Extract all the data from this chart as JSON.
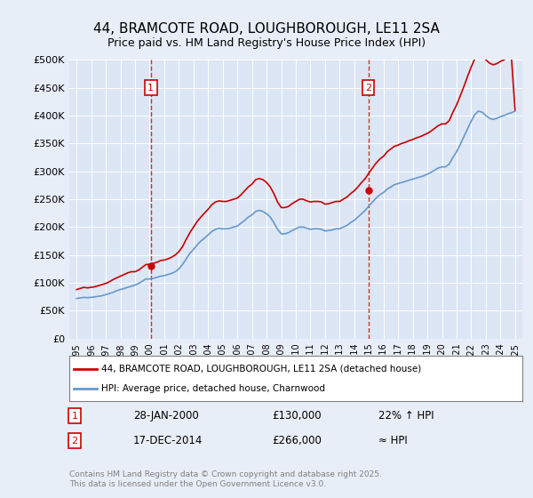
{
  "title_line1": "44, BRAMCOTE ROAD, LOUGHBOROUGH, LE11 2SA",
  "title_line2": "Price paid vs. HM Land Registry's House Price Index (HPI)",
  "background_color": "#e8eef7",
  "plot_bg_color": "#dce6f5",
  "ylim": [
    0,
    500000
  ],
  "yticks": [
    0,
    50000,
    100000,
    150000,
    200000,
    250000,
    300000,
    350000,
    400000,
    450000,
    500000
  ],
  "xlim_start": 1994.5,
  "xlim_end": 2025.5,
  "sale1_x": 2000.08,
  "sale1_y": 130000,
  "sale2_x": 2014.96,
  "sale2_y": 266000,
  "legend_label_red": "44, BRAMCOTE ROAD, LOUGHBOROUGH, LE11 2SA (detached house)",
  "legend_label_blue": "HPI: Average price, detached house, Charnwood",
  "annotation1_label": "1",
  "annotation1_date": "28-JAN-2000",
  "annotation1_price": "£130,000",
  "annotation1_hpi": "22% ↑ HPI",
  "annotation2_label": "2",
  "annotation2_date": "17-DEC-2014",
  "annotation2_price": "£266,000",
  "annotation2_hpi": "≈ HPI",
  "footer": "Contains HM Land Registry data © Crown copyright and database right 2025.\nThis data is licensed under the Open Government Licence v3.0.",
  "red_color": "#cc0000",
  "blue_color": "#6699cc",
  "hpi_data": {
    "dates": [
      1995.0,
      1995.25,
      1995.5,
      1995.75,
      1996.0,
      1996.25,
      1996.5,
      1996.75,
      1997.0,
      1997.25,
      1997.5,
      1997.75,
      1998.0,
      1998.25,
      1998.5,
      1998.75,
      1999.0,
      1999.25,
      1999.5,
      1999.75,
      2000.0,
      2000.25,
      2000.5,
      2000.75,
      2001.0,
      2001.25,
      2001.5,
      2001.75,
      2002.0,
      2002.25,
      2002.5,
      2002.75,
      2003.0,
      2003.25,
      2003.5,
      2003.75,
      2004.0,
      2004.25,
      2004.5,
      2004.75,
      2005.0,
      2005.25,
      2005.5,
      2005.75,
      2006.0,
      2006.25,
      2006.5,
      2006.75,
      2007.0,
      2007.25,
      2007.5,
      2007.75,
      2008.0,
      2008.25,
      2008.5,
      2008.75,
      2009.0,
      2009.25,
      2009.5,
      2009.75,
      2010.0,
      2010.25,
      2010.5,
      2010.75,
      2011.0,
      2011.25,
      2011.5,
      2011.75,
      2012.0,
      2012.25,
      2012.5,
      2012.75,
      2013.0,
      2013.25,
      2013.5,
      2013.75,
      2014.0,
      2014.25,
      2014.5,
      2014.75,
      2015.0,
      2015.25,
      2015.5,
      2015.75,
      2016.0,
      2016.25,
      2016.5,
      2016.75,
      2017.0,
      2017.25,
      2017.5,
      2017.75,
      2018.0,
      2018.25,
      2018.5,
      2018.75,
      2019.0,
      2019.25,
      2019.5,
      2019.75,
      2020.0,
      2020.25,
      2020.5,
      2020.75,
      2021.0,
      2021.25,
      2021.5,
      2021.75,
      2022.0,
      2022.25,
      2022.5,
      2022.75,
      2023.0,
      2023.25,
      2023.5,
      2023.75,
      2024.0,
      2024.25,
      2024.5,
      2024.75,
      2025.0
    ],
    "values": [
      72000,
      73000,
      74000,
      73500,
      74000,
      75000,
      76000,
      77000,
      79000,
      81000,
      83000,
      86000,
      88000,
      90000,
      92000,
      94000,
      96000,
      99000,
      103000,
      107000,
      107000,
      108000,
      110000,
      112000,
      113000,
      115000,
      117000,
      120000,
      125000,
      133000,
      143000,
      153000,
      160000,
      168000,
      175000,
      180000,
      186000,
      192000,
      196000,
      198000,
      197000,
      197000,
      198000,
      200000,
      202000,
      207000,
      212000,
      218000,
      222000,
      228000,
      230000,
      228000,
      224000,
      218000,
      208000,
      196000,
      188000,
      188000,
      190000,
      194000,
      197000,
      200000,
      200000,
      198000,
      196000,
      197000,
      197000,
      196000,
      193000,
      194000,
      195000,
      197000,
      197000,
      200000,
      203000,
      208000,
      212000,
      218000,
      224000,
      230000,
      238000,
      245000,
      252000,
      258000,
      262000,
      268000,
      272000,
      276000,
      278000,
      280000,
      282000,
      284000,
      286000,
      288000,
      290000,
      292000,
      295000,
      298000,
      302000,
      306000,
      308000,
      308000,
      313000,
      325000,
      335000,
      348000,
      362000,
      376000,
      390000,
      402000,
      408000,
      406000,
      400000,
      395000,
      393000,
      395000,
      398000,
      400000,
      403000,
      405000,
      408000
    ]
  },
  "hpi_red_data": {
    "dates": [
      1995.0,
      1995.25,
      1995.5,
      1995.75,
      1996.0,
      1996.25,
      1996.5,
      1996.75,
      1997.0,
      1997.25,
      1997.5,
      1997.75,
      1998.0,
      1998.25,
      1998.5,
      1998.75,
      1999.0,
      1999.25,
      1999.5,
      1999.75,
      2000.0,
      2000.25,
      2000.5,
      2000.75,
      2001.0,
      2001.25,
      2001.5,
      2001.75,
      2002.0,
      2002.25,
      2002.5,
      2002.75,
      2003.0,
      2003.25,
      2003.5,
      2003.75,
      2004.0,
      2004.25,
      2004.5,
      2004.75,
      2005.0,
      2005.25,
      2005.5,
      2005.75,
      2006.0,
      2006.25,
      2006.5,
      2006.75,
      2007.0,
      2007.25,
      2007.5,
      2007.75,
      2008.0,
      2008.25,
      2008.5,
      2008.75,
      2009.0,
      2009.25,
      2009.5,
      2009.75,
      2010.0,
      2010.25,
      2010.5,
      2010.75,
      2011.0,
      2011.25,
      2011.5,
      2011.75,
      2012.0,
      2012.25,
      2012.5,
      2012.75,
      2013.0,
      2013.25,
      2013.5,
      2013.75,
      2014.0,
      2014.25,
      2014.5,
      2014.75,
      2015.0,
      2015.25,
      2015.5,
      2015.75,
      2016.0,
      2016.25,
      2016.5,
      2016.75,
      2017.0,
      2017.25,
      2017.5,
      2017.75,
      2018.0,
      2018.25,
      2018.5,
      2018.75,
      2019.0,
      2019.25,
      2019.5,
      2019.75,
      2020.0,
      2020.25,
      2020.5,
      2020.75,
      2021.0,
      2021.25,
      2021.5,
      2021.75,
      2022.0,
      2022.25,
      2022.5,
      2022.75,
      2023.0,
      2023.25,
      2023.5,
      2023.75,
      2024.0,
      2024.25,
      2024.5,
      2024.75,
      2025.0
    ],
    "values": [
      88000,
      90000,
      92000,
      91000,
      92000,
      93000,
      95000,
      97000,
      99000,
      102000,
      106000,
      109000,
      112000,
      115000,
      118000,
      120000,
      120000,
      123000,
      128000,
      133000,
      133000,
      135000,
      137000,
      140000,
      141000,
      143000,
      146000,
      150000,
      156000,
      165000,
      178000,
      190000,
      200000,
      210000,
      218000,
      225000,
      232000,
      240000,
      245000,
      247000,
      246000,
      246000,
      248000,
      250000,
      252000,
      258000,
      265000,
      272000,
      277000,
      285000,
      287000,
      285000,
      280000,
      272000,
      260000,
      245000,
      235000,
      235000,
      237000,
      242000,
      246000,
      250000,
      250000,
      247000,
      245000,
      246000,
      246000,
      245000,
      241000,
      242000,
      244000,
      246000,
      246000,
      250000,
      254000,
      260000,
      265000,
      272000,
      280000,
      287000,
      297000,
      306000,
      315000,
      322000,
      327000,
      335000,
      340000,
      345000,
      347000,
      350000,
      352000,
      355000,
      357000,
      360000,
      362000,
      365000,
      368000,
      372000,
      377000,
      382000,
      385000,
      385000,
      391000,
      406000,
      419000,
      435000,
      452000,
      470000,
      487000,
      502000,
      510000,
      507000,
      500000,
      494000,
      491000,
      493000,
      497000,
      500000,
      504000,
      506000,
      410000
    ]
  }
}
